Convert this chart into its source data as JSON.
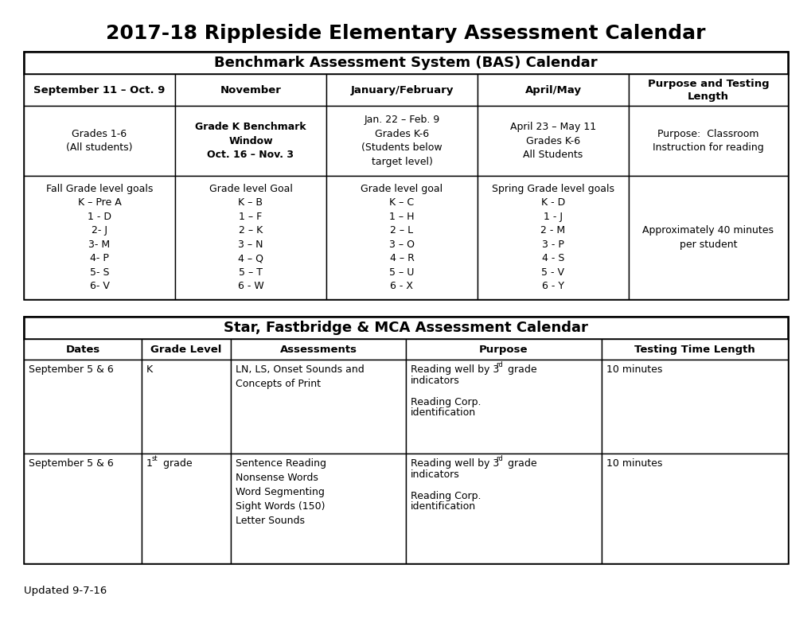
{
  "title": "2017-18 Rippleside Elementary Assessment Calendar",
  "title_fontsize": 18,
  "bg_color": "#ffffff",
  "t1_header": "Benchmark Assessment System (BAS) Calendar",
  "t1_col_headers": [
    "September 11 – Oct. 9",
    "November",
    "January/February",
    "April/May",
    "Purpose and Testing\nLength"
  ],
  "t1_row1": [
    "Grades 1-6\n(All students)",
    "Grade K Benchmark\nWindow\nOct. 16 – Nov. 3",
    "Jan. 22 – Feb. 9\nGrades K-6\n(Students below\ntarget level)",
    "April 23 – May 11\nGrades K-6\nAll Students",
    "Purpose:  Classroom\nInstruction for reading"
  ],
  "t1_row1_bold": [
    false,
    true,
    false,
    false,
    false
  ],
  "t1_row2": [
    "Fall Grade level goals\nK – Pre A\n1 - D\n2- J\n3- M\n4- P\n5- S\n6- V",
    "Grade level Goal\nK – B\n1 – F\n2 – K\n3 – N\n4 – Q\n5 – T\n6 - W",
    "Grade level goal\nK – C\n1 – H\n2 – L\n3 – O\n4 – R\n5 – U\n6 - X",
    "Spring Grade level goals\nK - D\n1 - J\n2 - M\n3 - P\n4 - S\n5 - V\n6 - Y",
    "Approximately 40 minutes\nper student"
  ],
  "t2_header": "Star, Fastbridge & MCA Assessment Calendar",
  "t2_col_headers": [
    "Dates",
    "Grade Level",
    "Assessments",
    "Purpose",
    "Testing Time Length"
  ],
  "t2_row1_col1": "September 5 & 6",
  "t2_row1_col2": "K",
  "t2_row1_col3": "LN, LS, Onset Sounds and\nConcepts of Print",
  "t2_row1_col4_line1": "Reading well by 3",
  "t2_row1_col4_sup1": "rd",
  "t2_row1_col4_rest": " grade\nindicators\n\nReading Corp.\nidentification",
  "t2_row1_col5": "10 minutes",
  "t2_row2_col1": "September 5 & 6",
  "t2_row2_col2_base": "1",
  "t2_row2_col2_sup": "st",
  "t2_row2_col2_rest": " grade",
  "t2_row2_col3": "Sentence Reading\nNonsense Words\nWord Segmenting\nSight Words (150)\nLetter Sounds",
  "t2_row2_col4_line1": "Reading well by 3",
  "t2_row2_col4_sup": "rd",
  "t2_row2_col4_rest": " grade\nindicators\n\nReading Corp.\nidentification",
  "t2_row2_col5": "10 minutes",
  "footer": "Updated 9-7-16"
}
